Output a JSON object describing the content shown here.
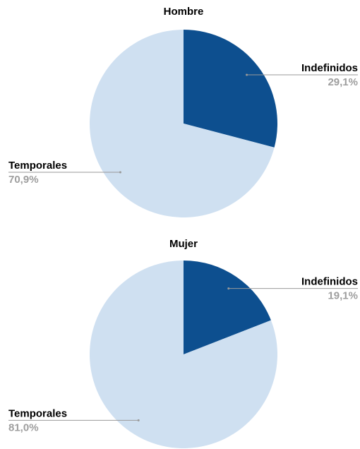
{
  "chart_data": [
    {
      "type": "pie",
      "title": "Hombre",
      "categories": [
        "Indefinidos",
        "Temporales"
      ],
      "values": [
        29.1,
        70.9
      ],
      "value_labels": [
        "29,1%",
        "70,9%"
      ],
      "colors": [
        "#0d4f8f",
        "#cfe0f1"
      ]
    },
    {
      "type": "pie",
      "title": "Mujer",
      "categories": [
        "Indefinidos",
        "Temporales"
      ],
      "values": [
        19.1,
        81.0
      ],
      "value_labels": [
        "19,1%",
        "81,0%"
      ],
      "colors": [
        "#0d4f8f",
        "#cfe0f1"
      ]
    }
  ]
}
